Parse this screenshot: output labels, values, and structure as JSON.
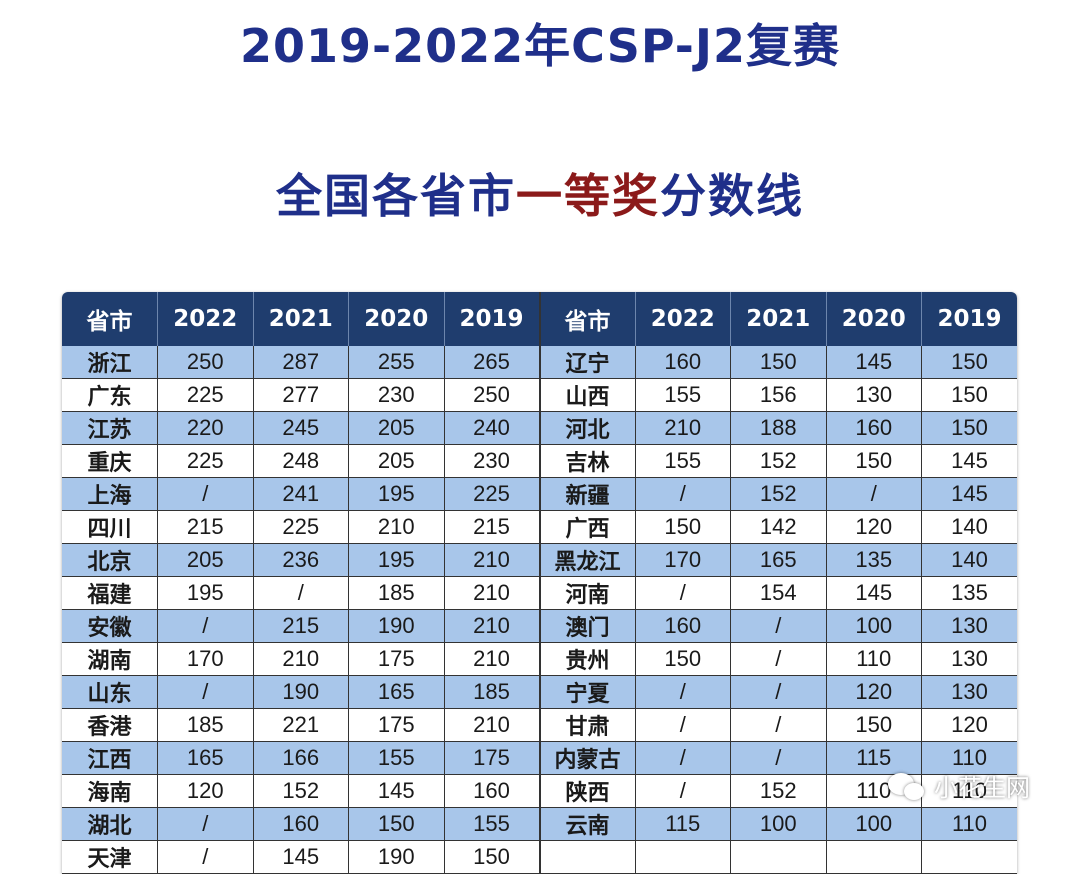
{
  "title_line1": "2019-2022年CSP-J2复赛",
  "title_line2_a": "全国各省市",
  "title_line2_b": "一等奖",
  "title_line2_c": "分数线",
  "colors": {
    "title": "#1f2f8a",
    "accent": "#8b1a1a",
    "header_bg": "#1f3d6e",
    "row_blue": "#a8c6ea"
  },
  "headers": [
    "省市",
    "2022",
    "2021",
    "2020",
    "2019",
    "省市",
    "2022",
    "2021",
    "2020",
    "2019"
  ],
  "rows": [
    [
      "浙江",
      "250",
      "287",
      "255",
      "265",
      "辽宁",
      "160",
      "150",
      "145",
      "150"
    ],
    [
      "广东",
      "225",
      "277",
      "230",
      "250",
      "山西",
      "155",
      "156",
      "130",
      "150"
    ],
    [
      "江苏",
      "220",
      "245",
      "205",
      "240",
      "河北",
      "210",
      "188",
      "160",
      "150"
    ],
    [
      "重庆",
      "225",
      "248",
      "205",
      "230",
      "吉林",
      "155",
      "152",
      "150",
      "145"
    ],
    [
      "上海",
      "/",
      "241",
      "195",
      "225",
      "新疆",
      "/",
      "152",
      "/",
      "145"
    ],
    [
      "四川",
      "215",
      "225",
      "210",
      "215",
      "广西",
      "150",
      "142",
      "120",
      "140"
    ],
    [
      "北京",
      "205",
      "236",
      "195",
      "210",
      "黑龙江",
      "170",
      "165",
      "135",
      "140"
    ],
    [
      "福建",
      "195",
      "/",
      "185",
      "210",
      "河南",
      "/",
      "154",
      "145",
      "135"
    ],
    [
      "安徽",
      "/",
      "215",
      "190",
      "210",
      "澳门",
      "160",
      "/",
      "100",
      "130"
    ],
    [
      "湖南",
      "170",
      "210",
      "175",
      "210",
      "贵州",
      "150",
      "/",
      "110",
      "130"
    ],
    [
      "山东",
      "/",
      "190",
      "165",
      "185",
      "宁夏",
      "/",
      "/",
      "120",
      "130"
    ],
    [
      "香港",
      "185",
      "221",
      "175",
      "210",
      "甘肃",
      "/",
      "/",
      "150",
      "120"
    ],
    [
      "江西",
      "165",
      "166",
      "155",
      "175",
      "内蒙古",
      "/",
      "/",
      "115",
      "110"
    ],
    [
      "海南",
      "120",
      "152",
      "145",
      "160",
      "陕西",
      "/",
      "152",
      "110",
      "110"
    ],
    [
      "湖北",
      "/",
      "160",
      "150",
      "155",
      "云南",
      "115",
      "100",
      "100",
      "110"
    ],
    [
      "天津",
      "/",
      "145",
      "190",
      "150",
      "",
      "",
      "",
      "",
      ""
    ]
  ],
  "watermark": "小花生网"
}
